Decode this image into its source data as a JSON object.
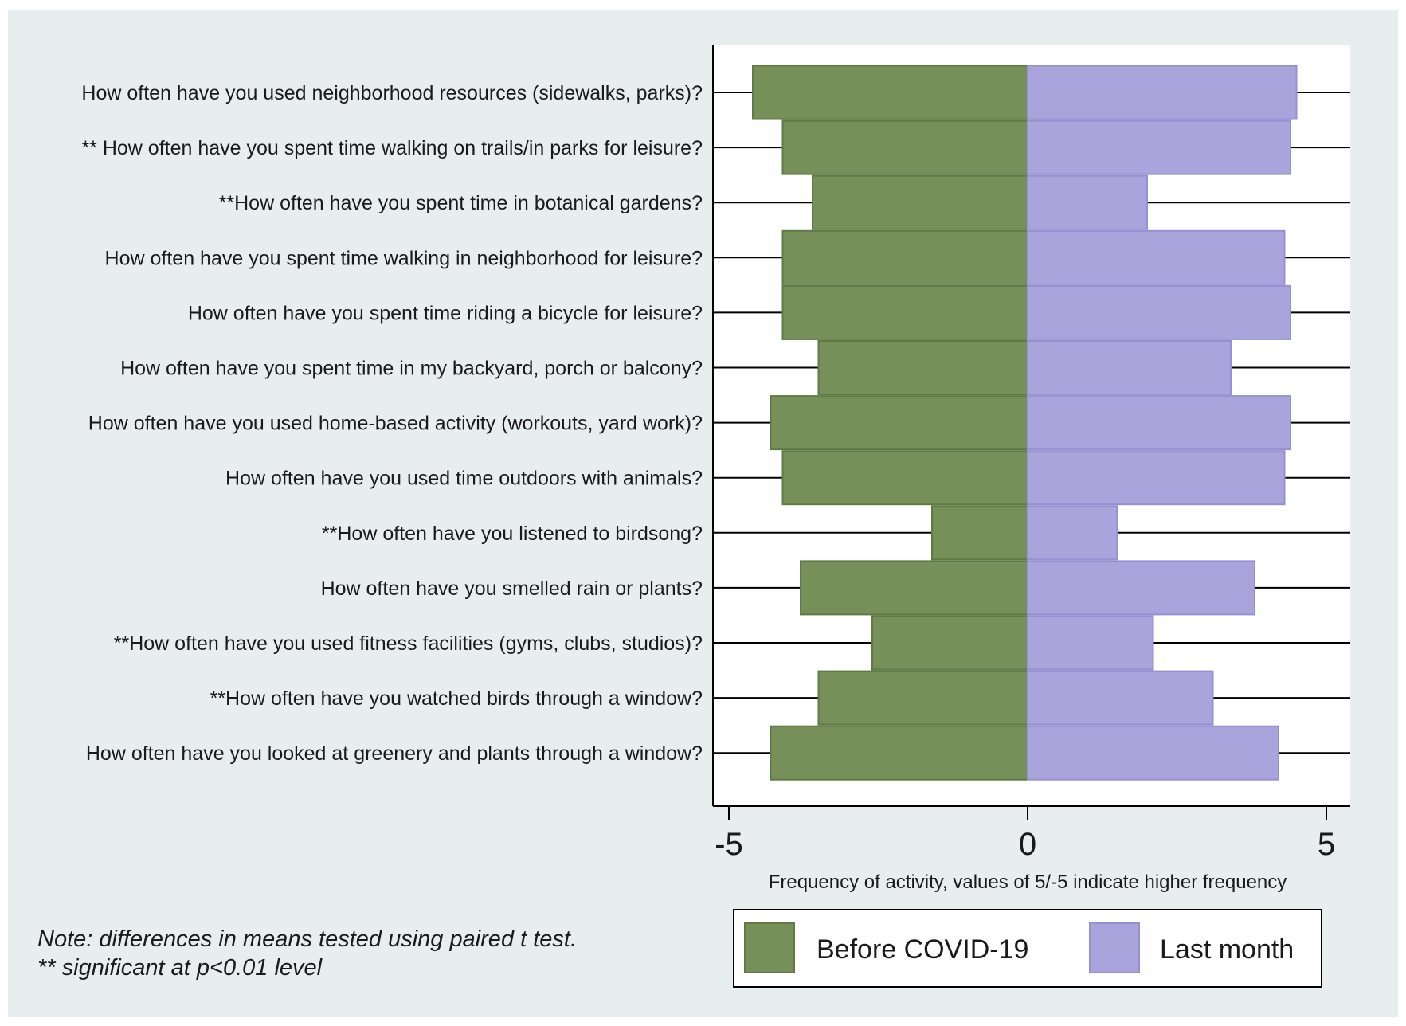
{
  "chart_data": {
    "type": "bar",
    "orientation": "horizontal",
    "layout": "diverging",
    "categories": [
      "How often have you used neighborhood resources (sidewalks, parks)?",
      "** How often have you spent time walking on trails/in parks for leisure?",
      "**How often have you spent time in botanical gardens?",
      "How often have you spent time walking in neighborhood for leisure?",
      "How often have you spent time riding a bicycle for leisure?",
      "How often have you spent time in my backyard, porch or balcony?",
      "How often have you used home-based activity (workouts, yard work)?",
      "How often have you used time outdoors with animals?",
      "**How often have you listened to birdsong?",
      "How often have you smelled rain or plants?",
      "**How often have you used fitness facilities (gyms, clubs, studios)?",
      "**How often have you watched birds through a window?",
      "How often have you looked at greenery and plants through a window?"
    ],
    "series": [
      {
        "name": "Before COVID-19",
        "color": "#77905a",
        "values": [
          -4.6,
          -4.1,
          -3.6,
          -4.1,
          -4.1,
          -3.5,
          -4.3,
          -4.1,
          -1.6,
          -3.8,
          -2.6,
          -3.5,
          -4.3
        ]
      },
      {
        "name": "Last month",
        "color": "#a9a5dc",
        "values": [
          4.5,
          4.4,
          2.0,
          4.3,
          4.4,
          3.4,
          4.4,
          4.3,
          1.5,
          3.8,
          2.1,
          3.1,
          4.2
        ]
      }
    ],
    "xlim": [
      -5.4,
      5.4
    ],
    "xticks": [
      -5,
      0,
      5
    ],
    "xtick_labels": [
      "-5",
      "0",
      "5"
    ],
    "xlabel": "Frequency of activity, values of 5/-5 indicate higher frequency",
    "legend_position": "bottom",
    "grid": "horizontal lines at each category",
    "note_lines": [
      "Note: differences in means tested using paired t test.",
      "** significant at p<0.01 level"
    ]
  }
}
